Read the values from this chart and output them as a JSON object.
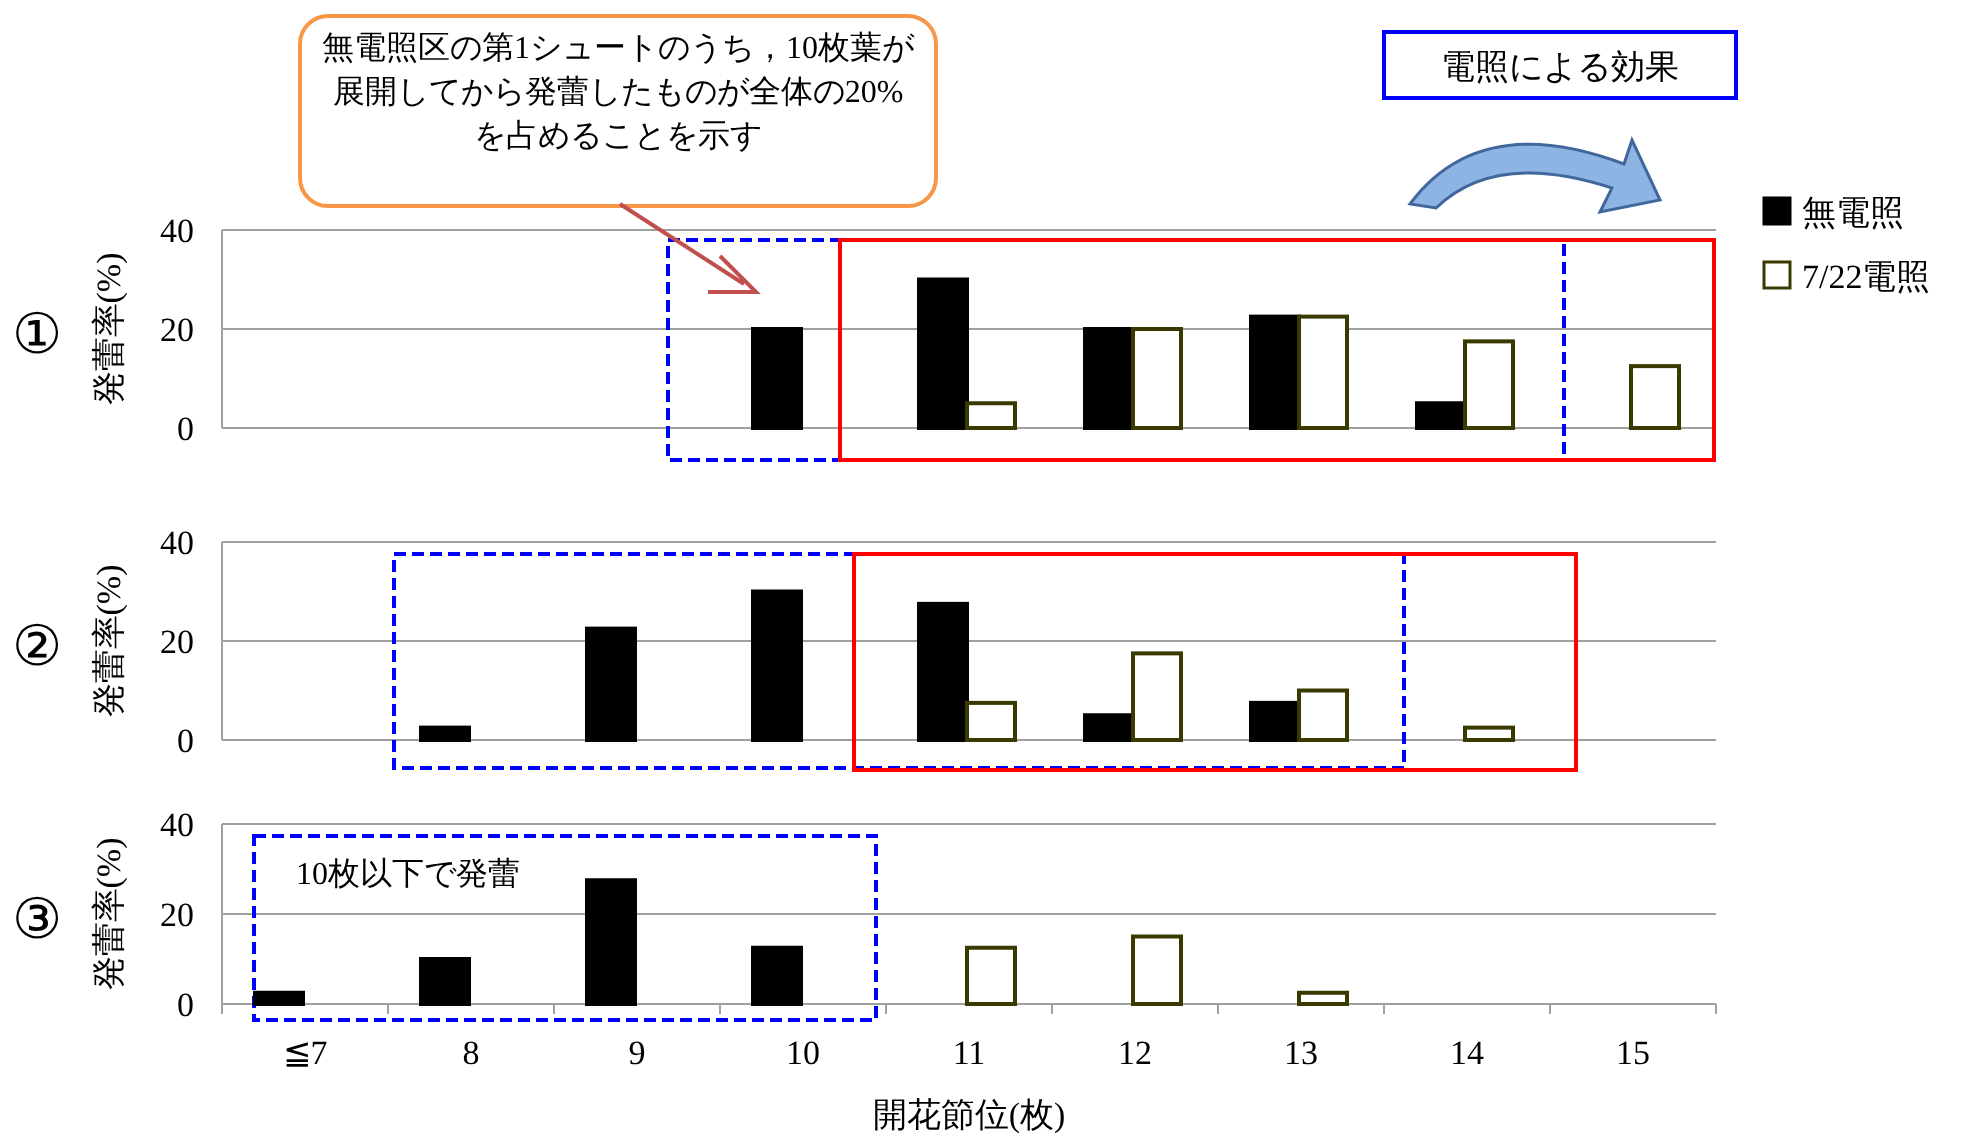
{
  "chart_data": [
    {
      "type": "bar",
      "categories": [
        null,
        null,
        null,
        null,
        null,
        null,
        null,
        null,
        null
      ],
      "ylabel": "発蕾率(%)",
      "ylim": [
        0,
        40
      ],
      "yticks": [
        0,
        20,
        40
      ],
      "grid": "y",
      "tick_labels": "y",
      "legend": "right",
      "annotations": [
        "①",
        "無電照区の第1シュートのうち，10枚葉が展開してから発蕾したものが全体の20%を占めることを示す",
        "電照による効果"
      ],
      "series": [
        {
          "name": "無電照",
          "color": "#000000",
          "values": [
            null,
            null,
            null,
            20,
            30,
            20,
            22.5,
            5,
            null
          ]
        },
        {
          "name": "7/22電照",
          "color": "#ffffff",
          "values": [
            null,
            null,
            null,
            null,
            5,
            20,
            22.5,
            17.5,
            12.5
          ]
        }
      ]
    },
    {
      "type": "bar",
      "categories": [
        null,
        null,
        null,
        null,
        null,
        null,
        null,
        null,
        null
      ],
      "ylabel": "発蕾率(%)",
      "ylim": [
        0,
        40
      ],
      "yticks": [
        0,
        20,
        40
      ],
      "grid": "y",
      "tick_labels": "y",
      "annotations": [
        "②"
      ],
      "series": [
        {
          "color": "#000000",
          "values": [
            null,
            2.5,
            22.5,
            30,
            27.5,
            5,
            7.5,
            null,
            null
          ]
        },
        {
          "color": "#ffffff",
          "values": [
            null,
            null,
            null,
            null,
            7.5,
            17.5,
            10,
            2.5,
            null
          ]
        }
      ]
    },
    {
      "type": "bar",
      "categories": [
        "≦7",
        "8",
        "9",
        "10",
        "11",
        "12",
        "13",
        "14",
        "15"
      ],
      "ylabel": "発蕾率(%)",
      "xlabel": "開花節位(枚)",
      "ylim": [
        0,
        40
      ],
      "yticks": [
        0,
        20,
        40
      ],
      "grid": "y",
      "annotations": [
        "③",
        "10枚以下で発蕾"
      ],
      "series": [
        {
          "color": "#000000",
          "values": [
            2.5,
            10,
            27.5,
            12.5,
            null,
            null,
            null,
            null,
            null
          ]
        },
        {
          "color": "#ffffff",
          "values": [
            null,
            null,
            null,
            null,
            12.5,
            15,
            2.5,
            null,
            null
          ]
        }
      ]
    }
  ]
}
